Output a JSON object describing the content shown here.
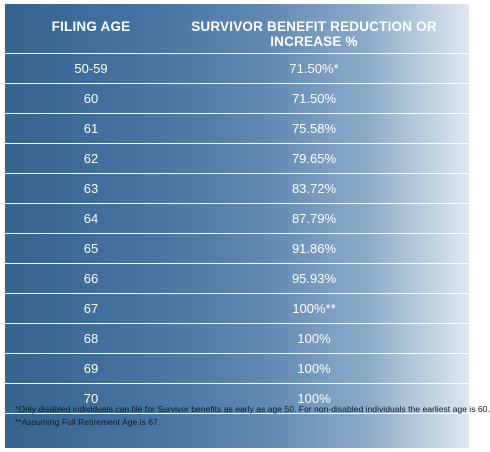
{
  "table": {
    "headers": {
      "age": "FILING AGE",
      "benefit": "SURVIVOR BENEFIT REDUCTION OR INCREASE %"
    },
    "rows": [
      {
        "age": "50-59",
        "value": "71.50%*"
      },
      {
        "age": "60",
        "value": "71.50%"
      },
      {
        "age": "61",
        "value": "75.58%"
      },
      {
        "age": "62",
        "value": "79.65%"
      },
      {
        "age": "63",
        "value": "83.72%"
      },
      {
        "age": "64",
        "value": "87.79%"
      },
      {
        "age": "65",
        "value": "91.86%"
      },
      {
        "age": "66",
        "value": "95.93%"
      },
      {
        "age": "67",
        "value": "100%**"
      },
      {
        "age": "68",
        "value": "100%"
      },
      {
        "age": "69",
        "value": "100%"
      },
      {
        "age": "70",
        "value": "100%"
      }
    ]
  },
  "footnotes": [
    "*Only disabled individuals can file for Survivor benefits as early as age 50.  For non-disabled individuals the earliest age is 60.",
    "**Assuming Full Retirement Age is 67."
  ],
  "colors": {
    "panel_dark": "#36648f",
    "panel_light": "#dfe7f0",
    "text": "#ffffff",
    "footnote_text": "#0a1a2a"
  }
}
